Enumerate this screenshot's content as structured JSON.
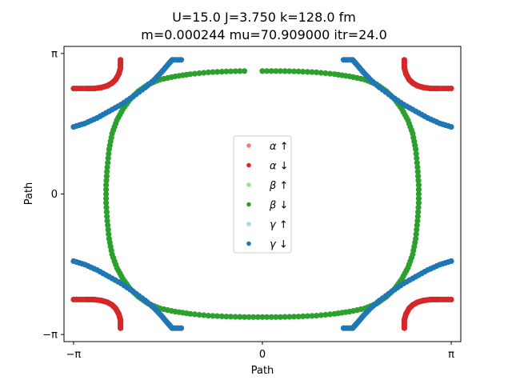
{
  "chart_data": {
    "type": "scatter",
    "title_line1": "U=15.0 J=3.750 k=128.0  fm",
    "title_line2": "m=0.000244 mu=70.909000 itr=24.0",
    "xlabel": "Path",
    "ylabel": "Path",
    "xlim": [
      -3.3,
      3.3
    ],
    "ylim": [
      -3.3,
      3.3
    ],
    "xticks": [
      {
        "value": -3.14159,
        "label": "−π"
      },
      {
        "value": 0,
        "label": "0"
      },
      {
        "value": 3.14159,
        "label": "π"
      }
    ],
    "yticks": [
      {
        "value": -3.14159,
        "label": "−π"
      },
      {
        "value": 0,
        "label": "0"
      },
      {
        "value": 3.14159,
        "label": "π"
      }
    ],
    "grid": false,
    "legend_position": "center",
    "colors": {
      "alpha_up": "#f08080",
      "alpha_down": "#d62728",
      "beta_up": "#98df8a",
      "beta_down": "#2ca02c",
      "gamma_up": "#9edae5",
      "gamma_down": "#1f77b4"
    },
    "series": [
      {
        "name": "α ↑",
        "color_key": "alpha_up",
        "points": []
      },
      {
        "name": "α ↓",
        "color_key": "alpha_down",
        "points": [
          [
            -3.14,
            2.36
          ],
          [
            -2.95,
            2.36
          ],
          [
            -2.8,
            2.36
          ],
          [
            -2.68,
            2.38
          ],
          [
            -2.58,
            2.42
          ],
          [
            -2.5,
            2.48
          ],
          [
            -2.44,
            2.56
          ],
          [
            -2.39,
            2.68
          ],
          [
            -2.36,
            2.82
          ],
          [
            -2.36,
            3.0
          ],
          [
            3.14,
            2.36
          ],
          [
            2.95,
            2.36
          ],
          [
            2.8,
            2.36
          ],
          [
            2.68,
            2.38
          ],
          [
            2.58,
            2.42
          ],
          [
            2.5,
            2.48
          ],
          [
            2.44,
            2.56
          ],
          [
            2.39,
            2.68
          ],
          [
            2.36,
            2.82
          ],
          [
            2.36,
            3.0
          ],
          [
            -3.14,
            -2.36
          ],
          [
            -2.95,
            -2.36
          ],
          [
            -2.8,
            -2.36
          ],
          [
            -2.68,
            -2.38
          ],
          [
            -2.58,
            -2.42
          ],
          [
            -2.5,
            -2.48
          ],
          [
            -2.44,
            -2.56
          ],
          [
            -2.39,
            -2.68
          ],
          [
            -2.36,
            -2.82
          ],
          [
            -2.36,
            -3.0
          ],
          [
            3.14,
            -2.36
          ],
          [
            2.95,
            -2.36
          ],
          [
            2.8,
            -2.36
          ],
          [
            2.68,
            -2.38
          ],
          [
            2.58,
            -2.42
          ],
          [
            2.5,
            -2.48
          ],
          [
            2.44,
            -2.56
          ],
          [
            2.39,
            -2.68
          ],
          [
            2.36,
            -2.82
          ],
          [
            2.36,
            -3.0
          ]
        ]
      },
      {
        "name": "β ↑",
        "color_key": "beta_up",
        "points": []
      },
      {
        "name": "β ↓",
        "color_key": "beta_down",
        "points": [
          [
            0.0,
            2.75
          ],
          [
            0.3,
            2.75
          ],
          [
            0.6,
            2.74
          ],
          [
            0.9,
            2.72
          ],
          [
            1.2,
            2.68
          ],
          [
            1.45,
            2.63
          ],
          [
            1.7,
            2.56
          ],
          [
            1.9,
            2.45
          ],
          [
            2.06,
            2.3
          ],
          [
            2.2,
            2.12
          ],
          [
            2.32,
            1.9
          ],
          [
            2.42,
            1.65
          ],
          [
            2.5,
            1.35
          ],
          [
            2.55,
            1.0
          ],
          [
            2.58,
            0.6
          ],
          [
            2.6,
            0.2
          ],
          [
            2.6,
            -0.2
          ],
          [
            2.58,
            -0.6
          ],
          [
            2.55,
            -1.0
          ],
          [
            2.5,
            -1.35
          ],
          [
            2.42,
            -1.65
          ],
          [
            2.32,
            -1.9
          ],
          [
            2.2,
            -2.12
          ],
          [
            2.06,
            -2.3
          ],
          [
            1.9,
            -2.45
          ],
          [
            1.7,
            -2.56
          ],
          [
            1.45,
            -2.63
          ],
          [
            1.2,
            -2.68
          ],
          [
            0.9,
            -2.72
          ],
          [
            0.6,
            -2.74
          ],
          [
            0.3,
            -2.75
          ],
          [
            0.0,
            -2.75
          ],
          [
            -0.3,
            -2.75
          ],
          [
            -0.6,
            -2.74
          ],
          [
            -0.9,
            -2.72
          ],
          [
            -1.2,
            -2.68
          ],
          [
            -1.45,
            -2.63
          ],
          [
            -1.7,
            -2.56
          ],
          [
            -1.9,
            -2.45
          ],
          [
            -2.06,
            -2.3
          ],
          [
            -2.2,
            -2.12
          ],
          [
            -2.32,
            -1.9
          ],
          [
            -2.42,
            -1.65
          ],
          [
            -2.5,
            -1.35
          ],
          [
            -2.55,
            -1.0
          ],
          [
            -2.58,
            -0.6
          ],
          [
            -2.6,
            -0.2
          ],
          [
            -2.6,
            0.2
          ],
          [
            -2.58,
            0.6
          ],
          [
            -2.55,
            1.0
          ],
          [
            -2.5,
            1.35
          ],
          [
            -2.42,
            1.65
          ],
          [
            -2.32,
            1.9
          ],
          [
            -2.2,
            2.12
          ],
          [
            -2.06,
            2.3
          ],
          [
            -1.9,
            2.45
          ],
          [
            -1.7,
            2.56
          ],
          [
            -1.45,
            2.63
          ],
          [
            -1.2,
            2.68
          ],
          [
            -0.9,
            2.72
          ],
          [
            -0.6,
            2.74
          ],
          [
            -0.3,
            2.75
          ]
        ]
      },
      {
        "name": "γ ↑",
        "color_key": "gamma_up",
        "points": []
      },
      {
        "name": "γ ↓",
        "color_key": "gamma_down",
        "points": [
          [
            -3.14,
            1.5
          ],
          [
            -2.95,
            1.58
          ],
          [
            -2.75,
            1.7
          ],
          [
            -2.55,
            1.85
          ],
          [
            -2.35,
            2.0
          ],
          [
            -2.15,
            2.18
          ],
          [
            -1.95,
            2.38
          ],
          [
            -1.8,
            2.55
          ],
          [
            -1.68,
            2.72
          ],
          [
            -1.58,
            2.88
          ],
          [
            -1.5,
            3.0
          ],
          [
            -1.35,
            3.0
          ],
          [
            3.14,
            1.5
          ],
          [
            2.95,
            1.58
          ],
          [
            2.75,
            1.7
          ],
          [
            2.55,
            1.85
          ],
          [
            2.35,
            2.0
          ],
          [
            2.15,
            2.18
          ],
          [
            1.95,
            2.38
          ],
          [
            1.8,
            2.55
          ],
          [
            1.68,
            2.72
          ],
          [
            1.58,
            2.88
          ],
          [
            1.5,
            3.0
          ],
          [
            1.35,
            3.0
          ],
          [
            -3.14,
            -1.5
          ],
          [
            -2.95,
            -1.58
          ],
          [
            -2.75,
            -1.7
          ],
          [
            -2.55,
            -1.85
          ],
          [
            -2.35,
            -2.0
          ],
          [
            -2.15,
            -2.18
          ],
          [
            -1.95,
            -2.38
          ],
          [
            -1.8,
            -2.55
          ],
          [
            -1.68,
            -2.72
          ],
          [
            -1.58,
            -2.88
          ],
          [
            -1.5,
            -3.0
          ],
          [
            -1.35,
            -3.0
          ],
          [
            3.14,
            -1.5
          ],
          [
            2.95,
            -1.58
          ],
          [
            2.75,
            -1.7
          ],
          [
            2.55,
            -1.85
          ],
          [
            2.35,
            -2.0
          ],
          [
            2.15,
            -2.18
          ],
          [
            1.95,
            -2.38
          ],
          [
            1.8,
            -2.55
          ],
          [
            1.68,
            -2.72
          ],
          [
            1.58,
            -2.88
          ],
          [
            1.5,
            -3.0
          ],
          [
            1.35,
            -3.0
          ]
        ]
      }
    ]
  }
}
